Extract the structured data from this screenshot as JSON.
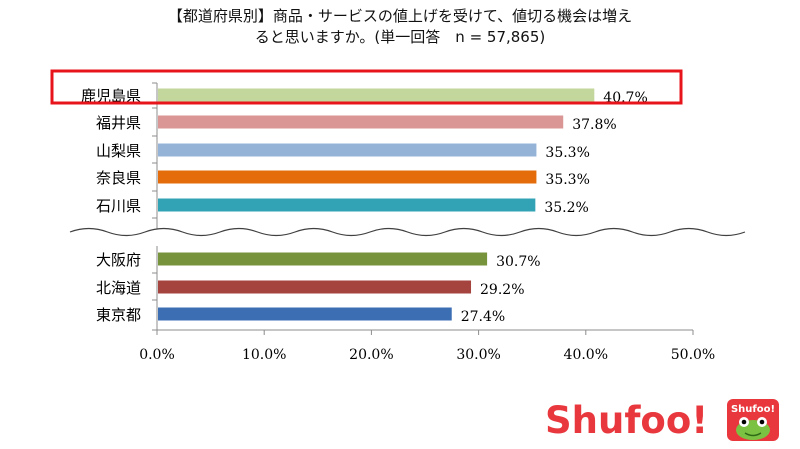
{
  "title_lines": [
    "【都道府県別】商品・サービスの値上げを受けて、値切る機会は増え",
    "ると思いますか。(単一回答　n = 57,865)"
  ],
  "chart_data": {
    "type": "bar",
    "orientation": "horizontal",
    "categories": [
      "鹿児島県",
      "福井県",
      "山梨県",
      "奈良県",
      "石川県",
      "大阪府",
      "北海道",
      "東京都"
    ],
    "values": [
      40.7,
      37.8,
      35.3,
      35.3,
      35.2,
      30.7,
      29.2,
      27.4
    ],
    "value_labels": [
      "40.7%",
      "37.8%",
      "35.3%",
      "35.3%",
      "35.2%",
      "30.7%",
      "29.2%",
      "27.4%"
    ],
    "colors": [
      "#c3d69b",
      "#d99694",
      "#95b3d7",
      "#e46c0a",
      "#31a3b4",
      "#77933c",
      "#a5433f",
      "#3c6eb4"
    ],
    "xlim": [
      0,
      50
    ],
    "x_ticks": [
      "0.0%",
      "10.0%",
      "20.0%",
      "30.0%",
      "40.0%",
      "50.0%"
    ],
    "highlight_category": "鹿児島県",
    "highlight_color": "#e8141c",
    "axis_break_after_index": 4,
    "grid": false
  },
  "brand": {
    "logo_text": "Shufoo!",
    "badge_text": "Shufoo!",
    "color": "#e8383d"
  }
}
